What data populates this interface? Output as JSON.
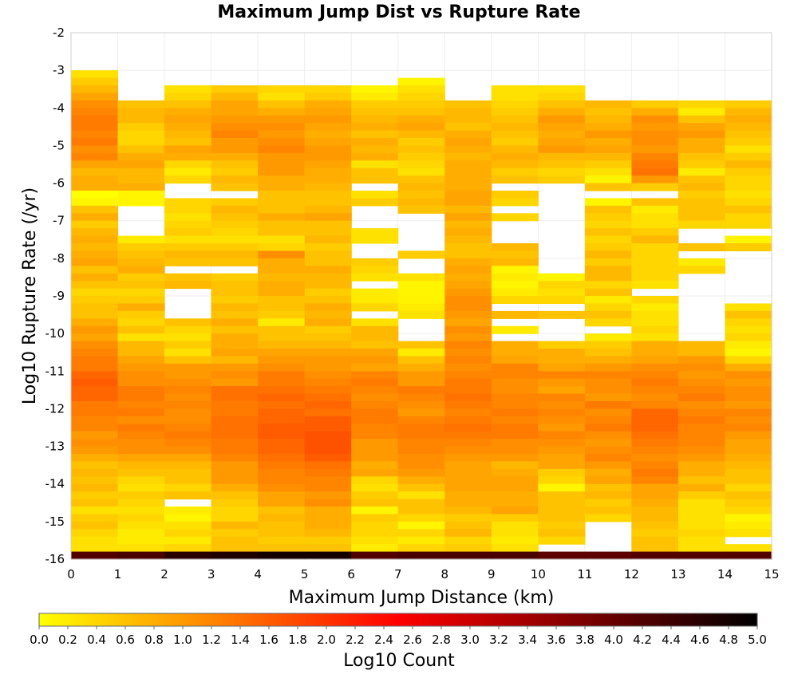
{
  "chart_data": {
    "type": "heatmap",
    "title": "Maximum Jump Dist vs Rupture Rate",
    "xlabel": "Maximum Jump Distance (km)",
    "ylabel": "Log10 Rupture Rate (/yr)",
    "colorbar_label": "Log10 Count",
    "xlim": [
      0,
      15
    ],
    "ylim": [
      -16,
      -2
    ],
    "x_ticks": [
      "0",
      "1",
      "2",
      "3",
      "4",
      "5",
      "6",
      "7",
      "8",
      "9",
      "10",
      "11",
      "12",
      "13",
      "14",
      "15"
    ],
    "y_ticks": [
      "-2",
      "-3",
      "-4",
      "-5",
      "-6",
      "-7",
      "-8",
      "-9",
      "-10",
      "-11",
      "-12",
      "-13",
      "-14",
      "-15",
      "-16"
    ],
    "colorbar_range": [
      0,
      5
    ],
    "colorbar_ticks": [
      "0.0",
      "0.2",
      "0.4",
      "0.6",
      "0.8",
      "1.0",
      "1.2",
      "1.4",
      "1.6",
      "1.8",
      "2.0",
      "2.2",
      "2.4",
      "2.6",
      "2.8",
      "3.0",
      "3.2",
      "3.4",
      "3.6",
      "3.8",
      "4.0",
      "4.2",
      "4.4",
      "4.6",
      "4.8",
      "5.0"
    ],
    "colormap": [
      "#ffff00",
      "#ff8000",
      "#ff0000",
      "#800000",
      "#000000"
    ],
    "x_centers": [
      0.5,
      1.5,
      2.5,
      3.5,
      4.5,
      5.5,
      6.5,
      7.5,
      8.5,
      9.5,
      10.5,
      11.5,
      12.5,
      13.5,
      14.5
    ],
    "y_centers": [
      -3.1,
      -3.3,
      -3.5,
      -3.7,
      -3.9,
      -4.1,
      -4.3,
      -4.5,
      -4.7,
      -4.9,
      -5.1,
      -5.3,
      -5.5,
      -5.7,
      -5.9,
      -6.1,
      -6.3,
      -6.5,
      -6.7,
      -6.9,
      -7.1,
      -7.3,
      -7.5,
      -7.7,
      -7.9,
      -8.1,
      -8.3,
      -8.5,
      -8.7,
      -8.9,
      -9.1,
      -9.3,
      -9.5,
      -9.7,
      -9.9,
      -10.1,
      -10.3,
      -10.5,
      -10.7,
      -10.9,
      -11.1,
      -11.3,
      -11.5,
      -11.7,
      -11.9,
      -12.1,
      -12.3,
      -12.5,
      -12.7,
      -12.9,
      -13.1,
      -13.3,
      -13.5,
      -13.7,
      -13.9,
      -14.1,
      -14.3,
      -14.5,
      -14.7,
      -14.9,
      -15.1,
      -15.3,
      -15.5,
      -15.7,
      -15.9
    ],
    "z_log10_count": [
      [
        0.3,
        null,
        null,
        null,
        null,
        null,
        null,
        null,
        null,
        null,
        null,
        null,
        null,
        null,
        null
      ],
      [
        0.5,
        null,
        null,
        null,
        null,
        null,
        null,
        0.1,
        null,
        null,
        null,
        null,
        null,
        null,
        null
      ],
      [
        0.7,
        null,
        0.3,
        0.5,
        0.4,
        0.4,
        0.1,
        0.3,
        null,
        0.3,
        0.3,
        null,
        null,
        null,
        null
      ],
      [
        0.9,
        null,
        0.4,
        0.7,
        0.3,
        0.5,
        0.2,
        0.4,
        null,
        0.3,
        0.4,
        null,
        null,
        null,
        null
      ],
      [
        1.1,
        0.6,
        0.6,
        0.9,
        0.6,
        0.8,
        0.5,
        0.5,
        0.6,
        0.4,
        0.6,
        0.7,
        0.5,
        0.4,
        0.5
      ],
      [
        1.2,
        0.7,
        0.8,
        0.9,
        0.8,
        0.9,
        0.6,
        0.6,
        0.7,
        0.5,
        0.8,
        0.6,
        0.8,
        0.2,
        0.7
      ],
      [
        1.3,
        0.7,
        0.9,
        1.0,
        1.0,
        1.0,
        0.7,
        0.8,
        0.7,
        0.6,
        1.0,
        0.7,
        1.1,
        0.6,
        0.8
      ],
      [
        1.3,
        0.5,
        0.8,
        1.1,
        1.1,
        0.9,
        0.8,
        0.9,
        0.6,
        0.7,
        0.9,
        0.8,
        1.0,
        0.9,
        0.7
      ],
      [
        1.2,
        0.4,
        0.7,
        1.2,
        1.0,
        0.8,
        0.6,
        0.7,
        0.8,
        0.6,
        0.8,
        1.0,
        1.1,
        1.0,
        0.6
      ],
      [
        1.3,
        0.4,
        0.6,
        1.0,
        1.1,
        0.9,
        0.8,
        0.5,
        0.9,
        0.5,
        0.9,
        0.8,
        1.1,
        0.8,
        0.5
      ],
      [
        1.1,
        0.6,
        0.9,
        1.0,
        1.2,
        1.0,
        0.7,
        0.6,
        0.8,
        0.7,
        1.0,
        0.9,
        1.0,
        0.8,
        0.3
      ],
      [
        1.2,
        0.8,
        0.8,
        0.8,
        1.0,
        1.0,
        0.8,
        0.5,
        0.7,
        0.8,
        0.7,
        0.7,
        1.2,
        0.6,
        0.5
      ],
      [
        0.9,
        0.9,
        0.4,
        0.6,
        1.0,
        0.9,
        0.3,
        0.4,
        0.8,
        0.7,
        0.6,
        0.5,
        1.3,
        0.5,
        0.7
      ],
      [
        0.7,
        0.7,
        0.2,
        0.5,
        1.0,
        0.8,
        0.6,
        0.3,
        0.8,
        0.5,
        0.4,
        0.3,
        1.4,
        0.2,
        0.5
      ],
      [
        0.8,
        0.7,
        0.4,
        0.7,
        0.8,
        0.8,
        0.6,
        0.6,
        0.8,
        0.6,
        0.5,
        0.1,
        1.0,
        0.6,
        0.4
      ],
      [
        0.8,
        0.8,
        null,
        0.6,
        0.8,
        0.7,
        null,
        0.7,
        0.8,
        null,
        null,
        0.6,
        0.5,
        0.7,
        0.4
      ],
      [
        0.0,
        0.1,
        null,
        null,
        0.6,
        0.6,
        0.3,
        0.6,
        0.9,
        0.5,
        null,
        null,
        null,
        0.5,
        0.3
      ],
      [
        0.1,
        0.1,
        0.4,
        0.5,
        0.6,
        0.6,
        0.5,
        0.7,
        0.9,
        0.4,
        null,
        0.1,
        0.6,
        0.6,
        0.4
      ],
      [
        0.6,
        null,
        0.4,
        0.7,
        0.6,
        0.7,
        null,
        0.6,
        0.7,
        null,
        null,
        0.6,
        0.2,
        0.6,
        0.6
      ],
      [
        0.8,
        null,
        0.3,
        0.6,
        0.8,
        0.9,
        null,
        null,
        0.9,
        0.4,
        null,
        0.5,
        0.3,
        0.6,
        0.4
      ],
      [
        0.5,
        null,
        0.4,
        0.5,
        0.6,
        0.6,
        null,
        null,
        0.7,
        null,
        null,
        0.4,
        0.3,
        0.4,
        0.4
      ],
      [
        0.7,
        null,
        0.5,
        0.4,
        0.6,
        0.6,
        0.3,
        null,
        0.8,
        null,
        null,
        0.6,
        0.5,
        null,
        null
      ],
      [
        0.8,
        0.2,
        0.3,
        0.3,
        0.3,
        0.7,
        0.3,
        null,
        0.7,
        null,
        null,
        0.4,
        0.7,
        null,
        0.1
      ],
      [
        0.7,
        0.5,
        0.5,
        0.5,
        0.4,
        0.5,
        null,
        null,
        0.6,
        0.7,
        null,
        0.5,
        0.4,
        0.6,
        0.5
      ],
      [
        0.8,
        0.6,
        0.7,
        0.7,
        1.1,
        0.6,
        null,
        0.5,
        0.6,
        0.6,
        null,
        0.7,
        0.4,
        null,
        null
      ],
      [
        0.9,
        0.7,
        0.6,
        0.6,
        0.8,
        0.6,
        0.5,
        null,
        0.8,
        0.7,
        null,
        0.5,
        0.4,
        0.2,
        null
      ],
      [
        0.6,
        0.8,
        null,
        null,
        0.8,
        0.8,
        0.4,
        null,
        0.9,
        0.1,
        null,
        0.7,
        0.4,
        0.4,
        null
      ],
      [
        0.8,
        0.5,
        0.6,
        0.5,
        0.7,
        0.7,
        0.3,
        0.3,
        0.8,
        0.2,
        0.1,
        0.7,
        0.4,
        null,
        null
      ],
      [
        0.6,
        0.6,
        0.7,
        0.6,
        0.8,
        0.7,
        null,
        0.1,
        0.9,
        0.1,
        0.4,
        0.4,
        0.3,
        null,
        null
      ],
      [
        0.4,
        0.4,
        null,
        0.6,
        0.8,
        0.5,
        0.2,
        0.1,
        1.0,
        0.2,
        0.3,
        0.6,
        null,
        null,
        null
      ],
      [
        0.5,
        0.5,
        null,
        0.5,
        0.6,
        0.6,
        0.2,
        0.1,
        1.1,
        0.4,
        0.4,
        0.2,
        0.4,
        null,
        null
      ],
      [
        0.6,
        0.8,
        null,
        0.7,
        0.6,
        0.8,
        0.4,
        0.2,
        1.1,
        null,
        null,
        0.4,
        0.2,
        null,
        0.3
      ],
      [
        0.6,
        0.5,
        null,
        0.6,
        0.5,
        0.7,
        null,
        0.3,
        1.0,
        0.7,
        0.6,
        0.6,
        0.3,
        null,
        0.6
      ],
      [
        0.8,
        0.4,
        0.6,
        0.8,
        0.2,
        0.8,
        0.3,
        null,
        0.9,
        null,
        null,
        0.4,
        0.3,
        null,
        0.4
      ],
      [
        1.0,
        0.6,
        0.4,
        0.6,
        0.6,
        0.5,
        0.7,
        null,
        1.1,
        0.2,
        null,
        null,
        0.4,
        null,
        0.3
      ],
      [
        0.9,
        0.3,
        0.3,
        0.8,
        0.6,
        0.6,
        0.7,
        null,
        1.0,
        null,
        null,
        0.2,
        0.3,
        null,
        0.4
      ],
      [
        1.1,
        0.7,
        0.5,
        0.8,
        0.7,
        0.7,
        0.6,
        0.6,
        1.2,
        0.8,
        0.5,
        0.5,
        0.8,
        0.7,
        0.2
      ],
      [
        1.2,
        0.7,
        0.3,
        0.9,
        0.9,
        0.9,
        0.9,
        0.2,
        1.1,
        0.8,
        0.8,
        0.6,
        0.8,
        0.7,
        0.1
      ],
      [
        1.3,
        0.9,
        0.6,
        0.7,
        1.0,
        1.0,
        1.0,
        0.6,
        1.2,
        0.9,
        0.8,
        0.8,
        0.9,
        1.0,
        0.4
      ],
      [
        1.3,
        1.0,
        1.0,
        1.0,
        1.1,
        1.0,
        0.9,
        0.8,
        1.1,
        1.2,
        0.9,
        1.0,
        1.1,
        1.1,
        0.8
      ],
      [
        1.5,
        1.1,
        1.0,
        1.1,
        1.3,
        1.1,
        1.2,
        1.0,
        1.2,
        1.2,
        1.2,
        1.2,
        1.2,
        1.0,
        1.1
      ],
      [
        1.6,
        1.1,
        1.1,
        1.0,
        1.3,
        1.2,
        1.3,
        1.0,
        1.3,
        1.1,
        1.0,
        1.1,
        1.3,
        1.1,
        1.0
      ],
      [
        1.5,
        1.3,
        1.2,
        1.4,
        1.4,
        1.3,
        1.2,
        1.3,
        1.3,
        1.1,
        0.9,
        1.1,
        1.2,
        1.2,
        1.1
      ],
      [
        1.5,
        1.3,
        1.1,
        1.4,
        1.5,
        1.4,
        1.1,
        1.2,
        1.4,
        1.2,
        1.2,
        1.0,
        1.1,
        1.3,
        1.1
      ],
      [
        1.3,
        1.2,
        1.2,
        1.3,
        1.4,
        1.5,
        1.2,
        1.1,
        1.3,
        1.2,
        1.1,
        1.3,
        1.2,
        1.1,
        1.0
      ],
      [
        1.3,
        1.3,
        1.1,
        1.3,
        1.5,
        1.4,
        1.3,
        1.0,
        1.2,
        1.3,
        1.2,
        1.1,
        1.5,
        1.2,
        1.2
      ],
      [
        1.2,
        1.1,
        1.1,
        1.4,
        1.5,
        1.6,
        1.3,
        1.2,
        1.3,
        1.2,
        1.1,
        1.2,
        1.5,
        1.3,
        1.1
      ],
      [
        1.2,
        1.3,
        1.2,
        1.4,
        1.6,
        1.6,
        1.2,
        1.3,
        1.4,
        1.3,
        1.0,
        1.3,
        1.5,
        1.2,
        1.2
      ],
      [
        1.0,
        1.2,
        1.3,
        1.4,
        1.6,
        1.7,
        1.2,
        1.3,
        1.3,
        1.3,
        1.2,
        1.1,
        1.4,
        1.2,
        1.0
      ],
      [
        1.1,
        1.1,
        1.2,
        1.3,
        1.5,
        1.7,
        1.0,
        1.2,
        1.2,
        1.1,
        1.1,
        1.0,
        1.3,
        1.2,
        0.9
      ],
      [
        1.0,
        1.1,
        1.1,
        1.3,
        1.5,
        1.7,
        1.0,
        1.2,
        1.1,
        1.1,
        1.0,
        1.1,
        1.2,
        1.1,
        0.9
      ],
      [
        0.8,
        0.9,
        0.9,
        1.2,
        1.4,
        1.6,
        1.0,
        1.1,
        1.0,
        1.0,
        0.9,
        1.2,
        1.1,
        1.0,
        0.8
      ],
      [
        0.6,
        0.7,
        0.7,
        1.0,
        1.3,
        1.4,
        0.8,
        1.1,
        0.9,
        0.7,
        0.9,
        1.0,
        1.2,
        0.8,
        0.7
      ],
      [
        0.7,
        0.6,
        0.6,
        1.0,
        1.2,
        1.3,
        0.9,
        1.0,
        0.9,
        0.8,
        0.5,
        0.8,
        1.3,
        0.8,
        0.6
      ],
      [
        0.6,
        0.4,
        0.6,
        1.0,
        1.2,
        1.2,
        0.4,
        0.8,
        0.9,
        0.9,
        0.4,
        0.9,
        1.2,
        0.6,
        0.6
      ],
      [
        0.7,
        0.3,
        0.4,
        0.8,
        1.1,
        1.2,
        0.3,
        0.6,
        0.9,
        0.9,
        0.1,
        0.6,
        0.9,
        0.8,
        0.4
      ],
      [
        0.5,
        0.5,
        0.6,
        0.6,
        0.9,
        1.0,
        0.5,
        0.3,
        0.8,
        0.8,
        0.6,
        0.7,
        0.9,
        0.5,
        0.6
      ],
      [
        0.6,
        0.4,
        null,
        0.5,
        0.9,
        1.1,
        0.6,
        0.6,
        0.8,
        0.8,
        0.6,
        0.5,
        0.8,
        0.3,
        0.5
      ],
      [
        0.3,
        0.3,
        0.2,
        0.4,
        0.6,
        0.8,
        0.1,
        0.6,
        0.7,
        0.9,
        0.6,
        0.6,
        0.7,
        0.3,
        0.4
      ],
      [
        0.5,
        0.4,
        0.1,
        0.4,
        0.7,
        0.8,
        0.5,
        0.4,
        0.5,
        0.5,
        0.6,
        0.4,
        0.7,
        0.3,
        0.1
      ],
      [
        0.6,
        0.3,
        0.3,
        0.7,
        0.6,
        0.8,
        0.4,
        0.1,
        0.6,
        0.3,
        0.5,
        null,
        0.6,
        0.3,
        0.2
      ],
      [
        0.4,
        0.2,
        0.4,
        0.5,
        0.6,
        0.7,
        0.4,
        0.4,
        0.7,
        0.3,
        0.6,
        null,
        0.5,
        0.4,
        0.3
      ],
      [
        0.3,
        0.2,
        0.2,
        0.6,
        0.5,
        0.5,
        0.3,
        0.2,
        0.4,
        0.2,
        0.4,
        null,
        0.6,
        0.3,
        null
      ],
      [
        0.3,
        0.3,
        0.4,
        0.6,
        0.6,
        0.6,
        0.2,
        0.4,
        0.5,
        0.3,
        null,
        null,
        0.6,
        0.3,
        0.3
      ],
      [
        4.2,
        4.3,
        4.6,
        4.7,
        4.8,
        4.8,
        4.2,
        4.3,
        4.3,
        4.3,
        4.1,
        4.1,
        4.2,
        4.2,
        4.2
      ]
    ]
  }
}
